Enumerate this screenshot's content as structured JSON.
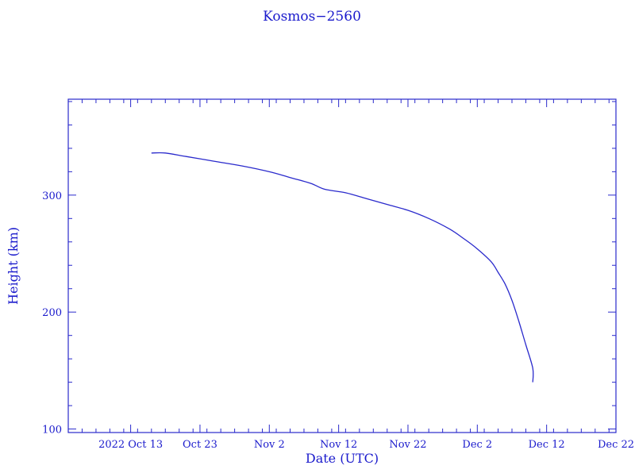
{
  "chart_data": {
    "type": "line",
    "title": "Kosmos−2560",
    "xlabel": "Date (UTC)",
    "ylabel": "Height (km)",
    "x_ticks": [
      {
        "date": "2022-10-13",
        "label": "2022 Oct 13"
      },
      {
        "date": "2022-10-23",
        "label": "Oct 23"
      },
      {
        "date": "2022-11-02",
        "label": "Nov  2"
      },
      {
        "date": "2022-11-12",
        "label": "Nov 12"
      },
      {
        "date": "2022-11-22",
        "label": "Nov 22"
      },
      {
        "date": "2022-12-02",
        "label": "Dec  2"
      },
      {
        "date": "2022-12-12",
        "label": "Dec 12"
      },
      {
        "date": "2022-12-22",
        "label": "Dec 22"
      }
    ],
    "y_ticks": [
      100,
      200,
      300
    ],
    "xlim": [
      "2022-10-04",
      "2022-12-22"
    ],
    "ylim": [
      97,
      382
    ],
    "grid": false,
    "legend": "none",
    "color": "#2a2acc",
    "series": [
      {
        "x": [
          "2022-10-16",
          "2022-10-18",
          "2022-10-21",
          "2022-10-25",
          "2022-10-29",
          "2022-11-02",
          "2022-11-05",
          "2022-11-08",
          "2022-11-10",
          "2022-11-13",
          "2022-11-16",
          "2022-11-19",
          "2022-11-22",
          "2022-11-25",
          "2022-11-28",
          "2022-11-30",
          "2022-12-02",
          "2022-12-04",
          "2022-12-05",
          "2022-12-06",
          "2022-12-07",
          "2022-12-08",
          "2022-12-09",
          "2022-12-10",
          "2022-12-10"
        ],
        "y": [
          336,
          336,
          333,
          329,
          325,
          320,
          315,
          310,
          305,
          302,
          297,
          292,
          287,
          280,
          271,
          263,
          254,
          243,
          234,
          224,
          210,
          192,
          172,
          152,
          140
        ]
      }
    ]
  }
}
